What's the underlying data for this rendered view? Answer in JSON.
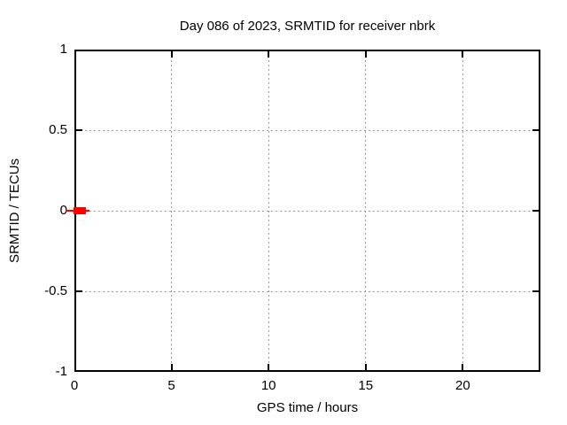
{
  "colors": {
    "background": "#ffffff",
    "axis": "#000000",
    "grid": "#999999",
    "text": "#000000",
    "series_red": "#ff0000"
  },
  "chart_data": {
    "type": "line",
    "title": "Day 086 of 2023, SRMTID for receiver nbrk",
    "xlabel": "GPS time / hours",
    "ylabel": "SRMTID / TECUs",
    "xlim": [
      0,
      24
    ],
    "ylim": [
      -1,
      1
    ],
    "grid": true,
    "legend_position": "none",
    "x_ticks": [
      {
        "value": 0,
        "label": "0"
      },
      {
        "value": 5,
        "label": "5"
      },
      {
        "value": 10,
        "label": "10"
      },
      {
        "value": 15,
        "label": "15"
      },
      {
        "value": 20,
        "label": "20"
      }
    ],
    "y_ticks": [
      {
        "value": -1,
        "label": "-1"
      },
      {
        "value": -0.5,
        "label": "-0.5"
      },
      {
        "value": 0,
        "label": "0"
      },
      {
        "value": 0.5,
        "label": "0.5"
      },
      {
        "value": 1,
        "label": "1"
      }
    ],
    "series": [
      {
        "name": "SRMTID",
        "color": "#ff0000",
        "y_value": 0,
        "segment_x": [
          0,
          0.6
        ],
        "whisker_x": [
          -0.45,
          0.77
        ],
        "note": "flat red segment at 0 TECUs near start of day; rest of plot empty"
      }
    ]
  }
}
